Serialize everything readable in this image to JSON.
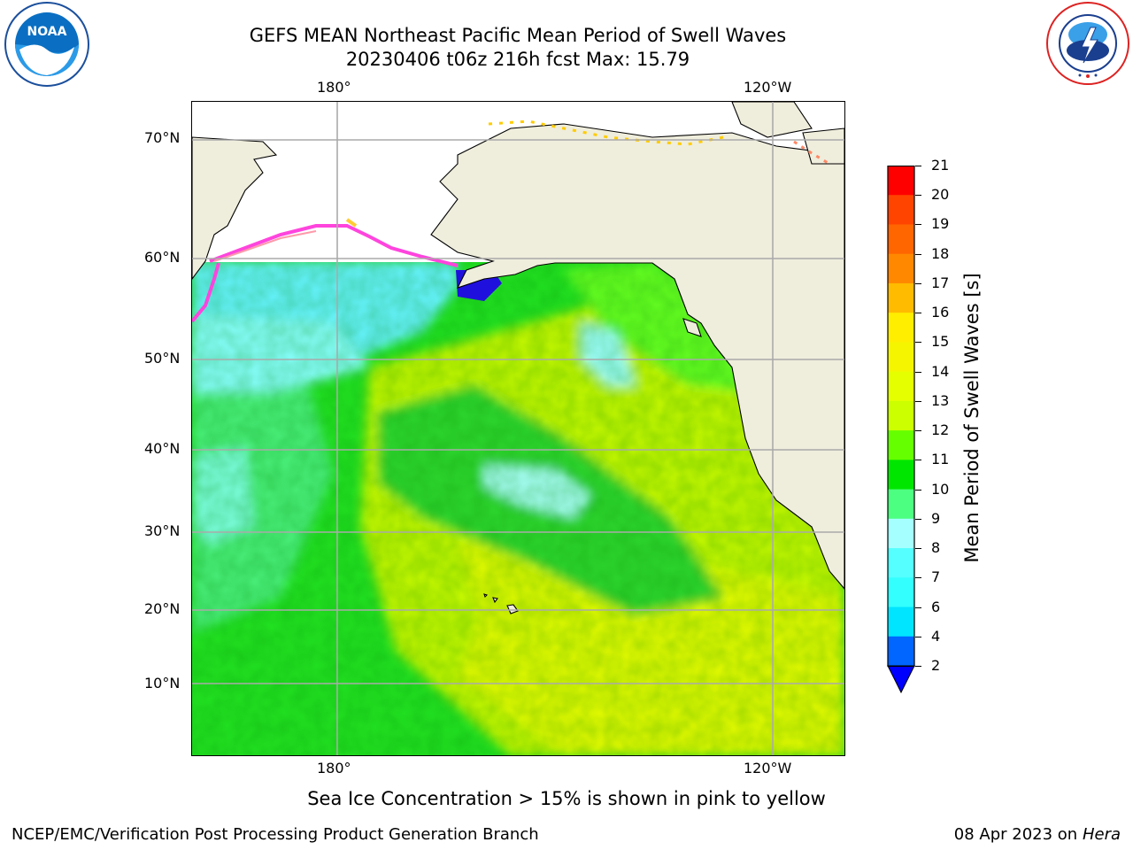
{
  "title": {
    "line1": "GEFS MEAN Northeast Pacific Mean Period of Swell Waves",
    "line2": "20230406 t06z 216h fcst   Max: 15.79"
  },
  "map": {
    "top_lon_labels": [
      "180°",
      "120°W"
    ],
    "bottom_lon_labels": [
      "180°",
      "120°W"
    ],
    "lat_labels": [
      "70°N",
      "60°N",
      "50°N",
      "40°N",
      "30°N",
      "20°N",
      "10°N"
    ],
    "grid": true,
    "land_color": "#efeddc",
    "ice_note": "Sea Ice Concentration > 15% is shown in pink to yellow"
  },
  "colorbar": {
    "title": "Mean Period of Swell Waves [s]",
    "ticks": [
      "21",
      "20",
      "19",
      "18",
      "17",
      "16",
      "15",
      "14",
      "13",
      "12",
      "11",
      "10",
      "9",
      "8",
      "7",
      "6",
      "4",
      "2"
    ],
    "levels": [
      {
        "from": 2,
        "to": 4,
        "color": "#0066ff"
      },
      {
        "from": 4,
        "to": 6,
        "color": "#00e5ff"
      },
      {
        "from": 6,
        "to": 7,
        "color": "#33ffff"
      },
      {
        "from": 7,
        "to": 8,
        "color": "#55ffff"
      },
      {
        "from": 8,
        "to": 9,
        "color": "#a6ffff"
      },
      {
        "from": 9,
        "to": 10,
        "color": "#4dff80"
      },
      {
        "from": 10,
        "to": 11,
        "color": "#00e600"
      },
      {
        "from": 11,
        "to": 12,
        "color": "#66ff00"
      },
      {
        "from": 12,
        "to": 13,
        "color": "#ccff00"
      },
      {
        "from": 13,
        "to": 14,
        "color": "#e6ff00"
      },
      {
        "from": 14,
        "to": 15,
        "color": "#f5f500"
      },
      {
        "from": 15,
        "to": 16,
        "color": "#ffee00"
      },
      {
        "from": 16,
        "to": 17,
        "color": "#ffbb00"
      },
      {
        "from": 17,
        "to": 18,
        "color": "#ff8800"
      },
      {
        "from": 18,
        "to": 19,
        "color": "#ff6600"
      },
      {
        "from": 19,
        "to": 20,
        "color": "#ff4400"
      },
      {
        "from": 20,
        "to": 21,
        "color": "#ff0000"
      }
    ],
    "extend_color": "#0000ff"
  },
  "footer": {
    "left": "NCEP/EMC/Verification Post Processing Product Generation Branch",
    "right_prefix": "08 Apr 2023 on ",
    "right_host": "Hera"
  },
  "logos": {
    "left": {
      "icon": "noaa-logo",
      "text": "NOAA"
    },
    "right": {
      "icon": "nws-logo",
      "text": "NATIONAL WEATHER SERVICE"
    }
  }
}
